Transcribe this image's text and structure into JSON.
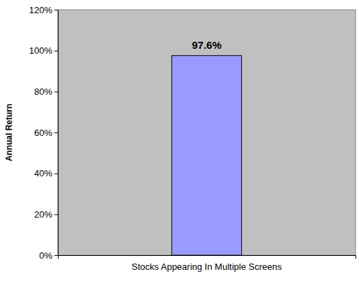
{
  "chart_data": {
    "type": "bar",
    "categories": [
      "Stocks Appearing In Multiple Screens"
    ],
    "values": [
      97.6
    ],
    "value_labels": [
      "97.6%"
    ],
    "color": "#9999ff",
    "ylabel": "Annual Return",
    "ylim": [
      0,
      120
    ],
    "yticks": [
      {
        "value": 0,
        "label": "0%"
      },
      {
        "value": 20,
        "label": "20%"
      },
      {
        "value": 40,
        "label": "40%"
      },
      {
        "value": 60,
        "label": "60%"
      },
      {
        "value": 80,
        "label": "80%"
      },
      {
        "value": 100,
        "label": "100%"
      },
      {
        "value": 120,
        "label": "120%"
      }
    ],
    "grid": false,
    "data_labels": true
  }
}
